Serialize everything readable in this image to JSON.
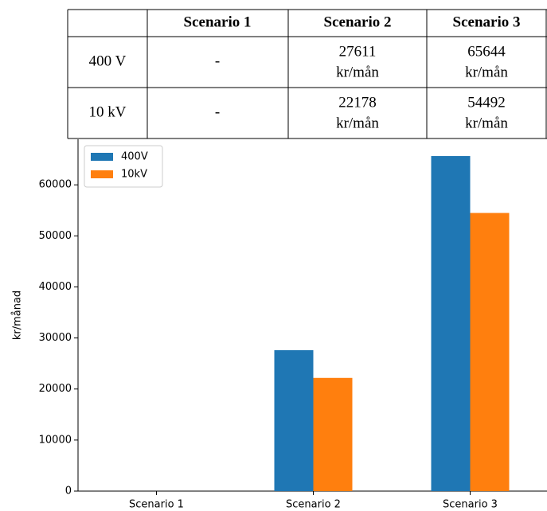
{
  "table": {
    "columns": [
      "Scenario 1",
      "Scenario 2",
      "Scenario 3"
    ],
    "rows": [
      [
        [
          "400 V"
        ],
        [
          "-"
        ],
        [
          "27611",
          "kr/mån"
        ],
        [
          "65644",
          "kr/mån"
        ]
      ],
      [
        [
          "10 kV"
        ],
        [
          "-"
        ],
        [
          "22178",
          "kr/mån"
        ],
        [
          "54492",
          "kr/mån"
        ]
      ]
    ]
  },
  "chart_data": {
    "type": "bar",
    "ylabel": "kr/månad",
    "categories": [
      "Scenario 1",
      "Scenario 2",
      "Scenario 3"
    ],
    "series": [
      {
        "name": "400V",
        "color": "#1f77b4",
        "values": [
          null,
          27611,
          65644
        ]
      },
      {
        "name": "10kV",
        "color": "#ff7f0e",
        "values": [
          null,
          22178,
          54492
        ]
      }
    ],
    "ylim": [
      0,
      68926
    ],
    "yticks": [
      0,
      10000,
      20000,
      30000,
      40000,
      50000,
      60000
    ],
    "legend": "upper left"
  }
}
